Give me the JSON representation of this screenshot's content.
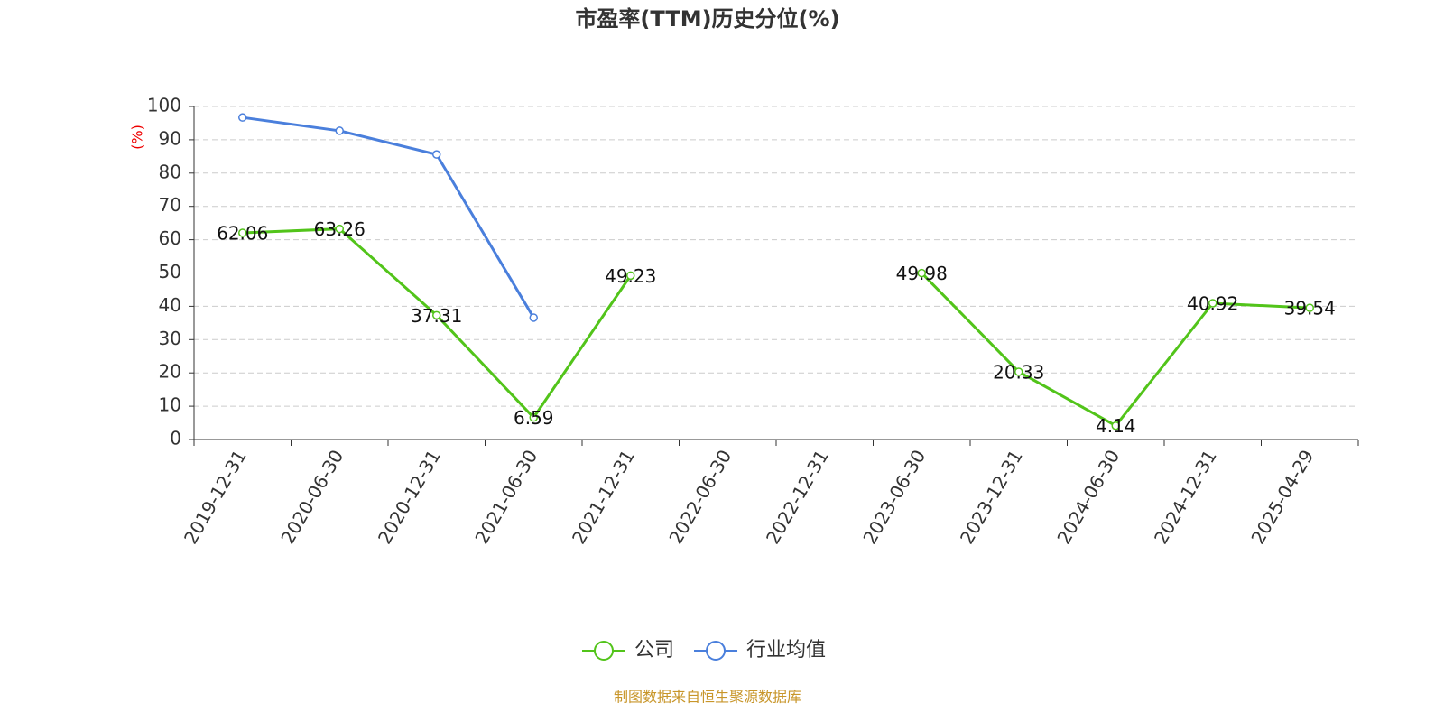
{
  "chart_data": {
    "type": "line",
    "title": "市盈率(TTM)历史分位(%)",
    "y_label": "(%)",
    "source": "制图数据来自恒生聚源数据库",
    "categories": [
      "2019-12-31",
      "2020-06-30",
      "2020-12-31",
      "2021-06-30",
      "2021-12-31",
      "2022-06-30",
      "2022-12-31",
      "2023-06-30",
      "2023-12-31",
      "2024-06-30",
      "2024-12-31",
      "2025-04-29"
    ],
    "series": [
      {
        "name": "公司",
        "color": "#52c41a",
        "values": [
          62.06,
          63.26,
          37.31,
          6.59,
          49.23,
          null,
          null,
          49.98,
          20.33,
          4.14,
          40.92,
          39.54
        ],
        "labels": true
      },
      {
        "name": "行业均值",
        "color": "#4a7fdc",
        "values": [
          96.7,
          92.7,
          85.6,
          36.6,
          null,
          null,
          null,
          null,
          null,
          null,
          null,
          null
        ],
        "labels": false
      }
    ],
    "ylim": [
      0,
      100
    ],
    "yticks": [
      0,
      10,
      20,
      30,
      40,
      50,
      60,
      70,
      80,
      90,
      100
    ],
    "grid": true,
    "legend": "bottom"
  }
}
